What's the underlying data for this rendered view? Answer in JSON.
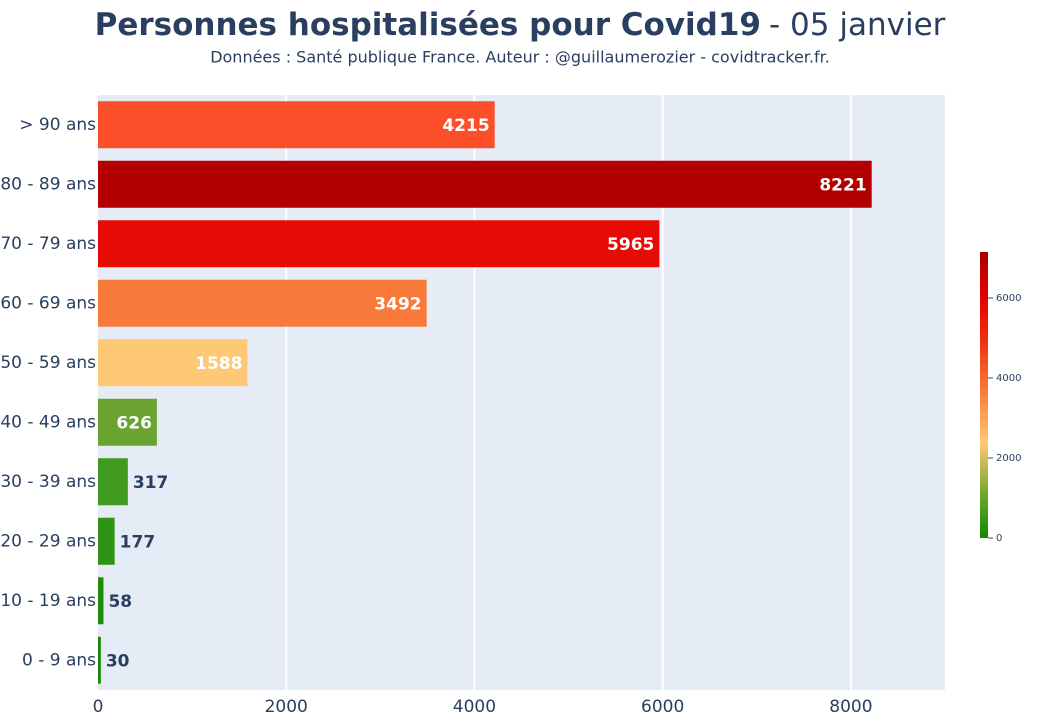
{
  "chart_data": {
    "type": "bar",
    "orientation": "horizontal",
    "title": "Personnes hospitalisées pour Covid19",
    "title_suffix": "- 05 janvier",
    "subtitle": "Données : Santé publique France. Auteur : @guillaumerozier - covidtracker.fr.",
    "categories": [
      "> 90 ans",
      "80 - 89 ans",
      "70 - 79 ans",
      "60 - 69 ans",
      "50 - 59 ans",
      "40 - 49 ans",
      "30 - 39 ans",
      "20 - 29 ans",
      "10 - 19 ans",
      "0 - 9 ans"
    ],
    "values": [
      4215,
      8221,
      5965,
      3492,
      1588,
      626,
      317,
      177,
      58,
      30
    ],
    "colors": [
      "#fb4f2a",
      "#b20000",
      "#e80a05",
      "#f77a3a",
      "#fec877",
      "#6ba331",
      "#3f9a1f",
      "#2f9316",
      "#1e8c0a",
      "#198a05"
    ],
    "xlim": [
      0,
      9000
    ],
    "xticks": [
      0,
      2000,
      4000,
      6000,
      8000
    ],
    "grid": true,
    "colorbar": {
      "lim": [
        0,
        7150
      ],
      "ticks": [
        0,
        2000,
        4000,
        6000
      ],
      "colorscale": [
        "#0f8a00",
        "#7aaa32",
        "#fec877",
        "#f7823e",
        "#f03a15",
        "#e80000",
        "#a80000"
      ]
    }
  }
}
